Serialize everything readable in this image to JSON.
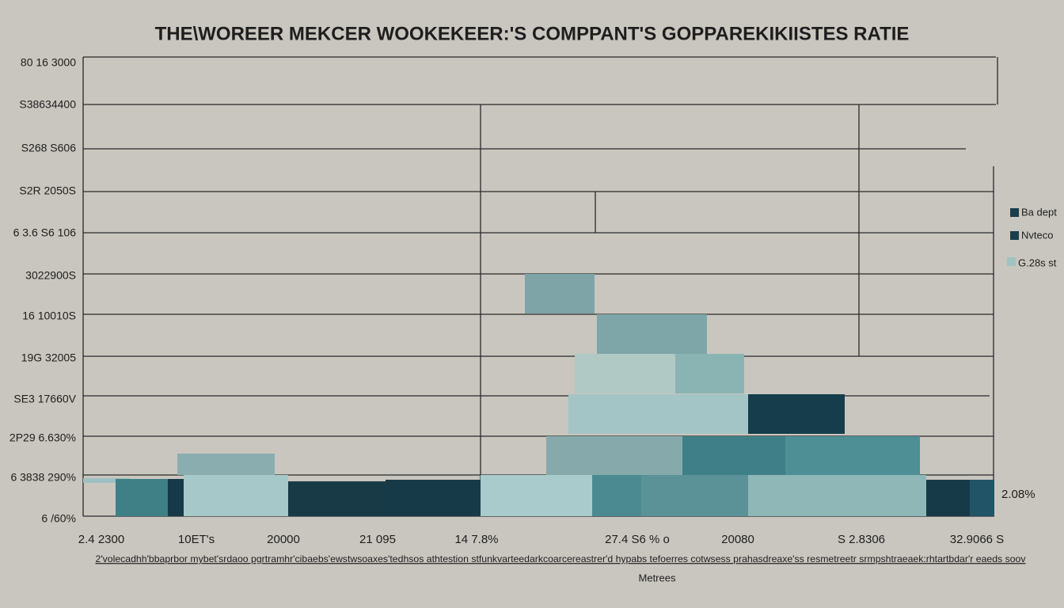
{
  "title": "THE\\WOREER MEKCER WOOKEKEER:'S COMPPANT'S GOPPAREKIKIISTES RATIE",
  "y_axis_labels": [
    "80 16 3000",
    "S38634400",
    "S268 S606",
    "S2R 2050S",
    "6 3.6 S6 106",
    "3022900S",
    "16 10010S",
    "19G 32005",
    "SE3 17660V",
    "2P29 6.630%",
    "6 3838 290%",
    "6 /60%"
  ],
  "x_axis_labels": [
    "2.4 2300",
    "10ET's",
    "20000",
    "21 095",
    "14 7.8%",
    "27.4 S6 % o",
    "20080",
    "S 2.8306",
    "32.9066 S"
  ],
  "legend": [
    "Ba dept",
    "Nvteco",
    "G.28s st"
  ],
  "annotation": "2.08%",
  "footnote": "2'volecadhh'bbaprbor mybet'srdaoo pgrtramhr'cibaebs'ewstwsoaxes'tedhsos athtestion stfunkvarteedarkcoarcereastrer'd hypabs tefoerres cotwsess prahasdreaxe'ss resmetreetr srmpshtraeaek:rhtartbdar'r eaeds soov",
  "axis_title": "Metrees"
}
